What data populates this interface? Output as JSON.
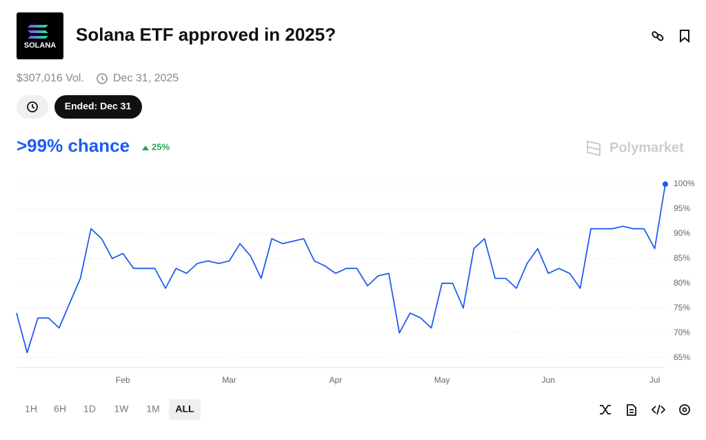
{
  "header": {
    "logo_text": "SOLANA",
    "title": "Solana ETF approved in 2025?",
    "volume": "$307,016 Vol.",
    "end_date": "Dec 31, 2025",
    "status": "Ended: Dec 31"
  },
  "summary": {
    "chance": ">99% chance",
    "change": "25%",
    "brand": "Polymarket"
  },
  "chart_data": {
    "type": "line",
    "color": "#1d5cf0",
    "grid": true,
    "categories": [
      null,
      null,
      null,
      null,
      null,
      null,
      null,
      null,
      null,
      null,
      "Feb",
      null,
      null,
      null,
      null,
      null,
      null,
      null,
      null,
      null,
      "Mar",
      null,
      null,
      null,
      null,
      null,
      null,
      null,
      null,
      null,
      "Apr",
      null,
      null,
      null,
      null,
      null,
      null,
      null,
      null,
      null,
      "May",
      null,
      null,
      null,
      null,
      null,
      null,
      null,
      null,
      null,
      "Jun",
      null,
      null,
      null,
      null,
      null,
      null,
      null,
      null,
      null,
      "Jul",
      null
    ],
    "values": [
      74,
      66,
      73,
      73,
      71,
      76,
      81,
      91,
      89,
      85,
      86,
      83,
      83,
      83,
      79,
      83,
      82,
      84,
      84.5,
      84,
      84.5,
      88,
      85.5,
      81,
      89,
      88,
      88.5,
      89,
      84.5,
      83.5,
      82,
      83,
      83,
      79.5,
      81.5,
      82,
      70,
      74,
      73,
      71,
      80,
      80,
      75,
      87,
      89,
      81,
      81,
      79,
      84,
      87,
      82,
      83,
      82,
      79,
      91,
      91,
      91,
      91.5,
      91,
      91,
      87,
      100
    ],
    "ylim": [
      63,
      100
    ],
    "yticks": [
      {
        "value": 65,
        "label": "65%"
      },
      {
        "value": 70,
        "label": "70%"
      },
      {
        "value": 75,
        "label": "75%"
      },
      {
        "value": 80,
        "label": "80%"
      },
      {
        "value": 85,
        "label": "85%"
      },
      {
        "value": 90,
        "label": "90%"
      },
      {
        "value": 95,
        "label": "95%"
      },
      {
        "value": 100,
        "label": "100%"
      }
    ]
  },
  "controls": {
    "ranges": [
      "1H",
      "6H",
      "1D",
      "1W",
      "1M",
      "ALL"
    ],
    "active": "ALL"
  }
}
